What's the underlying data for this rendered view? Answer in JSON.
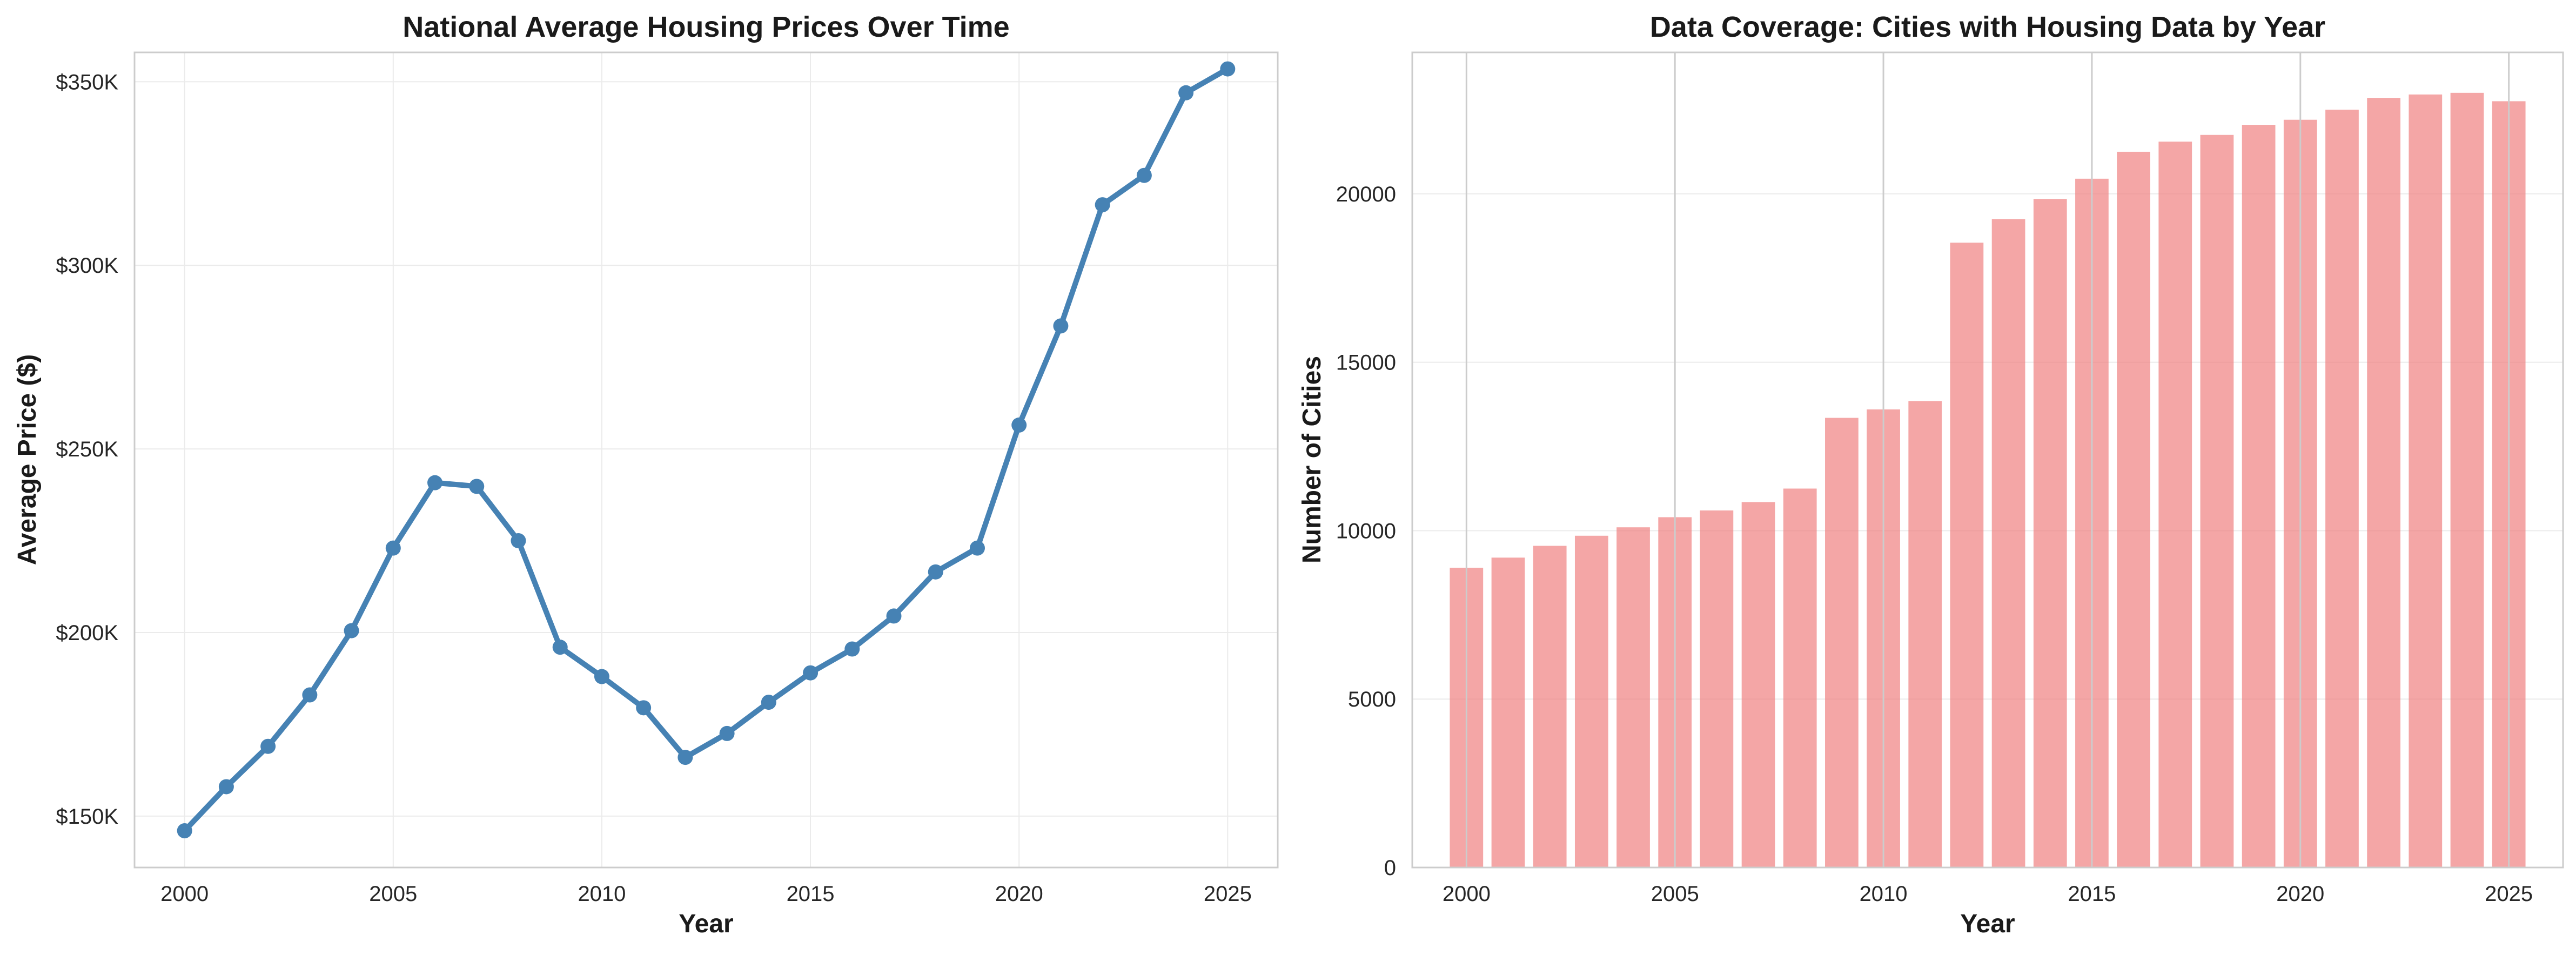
{
  "chart_data": [
    {
      "type": "line",
      "title": "National Average Housing Prices Over Time",
      "xlabel": "Year",
      "ylabel": "Average Price ($)",
      "xlim": [
        1998.8,
        2026.2
      ],
      "ylim": [
        136000,
        358000
      ],
      "x_ticks": [
        2000,
        2005,
        2010,
        2015,
        2020,
        2025
      ],
      "y_ticks": [
        150000,
        200000,
        250000,
        300000,
        350000
      ],
      "y_tick_labels": [
        "$150K",
        "$200K",
        "$250K",
        "$300K",
        "$350K"
      ],
      "grid": true,
      "color": "#4682b4",
      "series": [
        {
          "x": [
            2000,
            2001,
            2002,
            2003,
            2004,
            2005,
            2006,
            2007,
            2008,
            2009,
            2010,
            2011,
            2012,
            2013,
            2014,
            2015,
            2016,
            2017,
            2018,
            2019,
            2020,
            2021,
            2022,
            2023,
            2024,
            2025
          ],
          "y": [
            146000,
            158000,
            169000,
            183000,
            200500,
            223000,
            240800,
            239800,
            225000,
            196000,
            188000,
            179500,
            166000,
            172500,
            181000,
            189000,
            195500,
            204500,
            216500,
            223000,
            256500,
            283500,
            316500,
            324500,
            347000,
            353500
          ]
        }
      ]
    },
    {
      "type": "bar",
      "title": "Data Coverage: Cities with Housing Data by Year",
      "xlabel": "Year",
      "ylabel": "Number of Cities",
      "xlim": [
        1998.7,
        2026.3
      ],
      "ylim": [
        0,
        24200
      ],
      "x_ticks": [
        2000,
        2005,
        2010,
        2015,
        2020,
        2025
      ],
      "y_ticks": [
        0,
        5000,
        10000,
        15000,
        20000
      ],
      "grid": true,
      "color": "#f08080",
      "categories": [
        2000,
        2001,
        2002,
        2003,
        2004,
        2005,
        2006,
        2007,
        2008,
        2009,
        2010,
        2011,
        2012,
        2013,
        2014,
        2015,
        2016,
        2017,
        2018,
        2019,
        2020,
        2021,
        2022,
        2023,
        2024,
        2025
      ],
      "values": [
        8900,
        9200,
        9550,
        9850,
        10100,
        10400,
        10600,
        10850,
        11250,
        13350,
        13600,
        13850,
        18550,
        19250,
        19850,
        20450,
        21250,
        21550,
        21750,
        22050,
        22200,
        22500,
        22850,
        22950,
        23000,
        22750
      ]
    }
  ]
}
